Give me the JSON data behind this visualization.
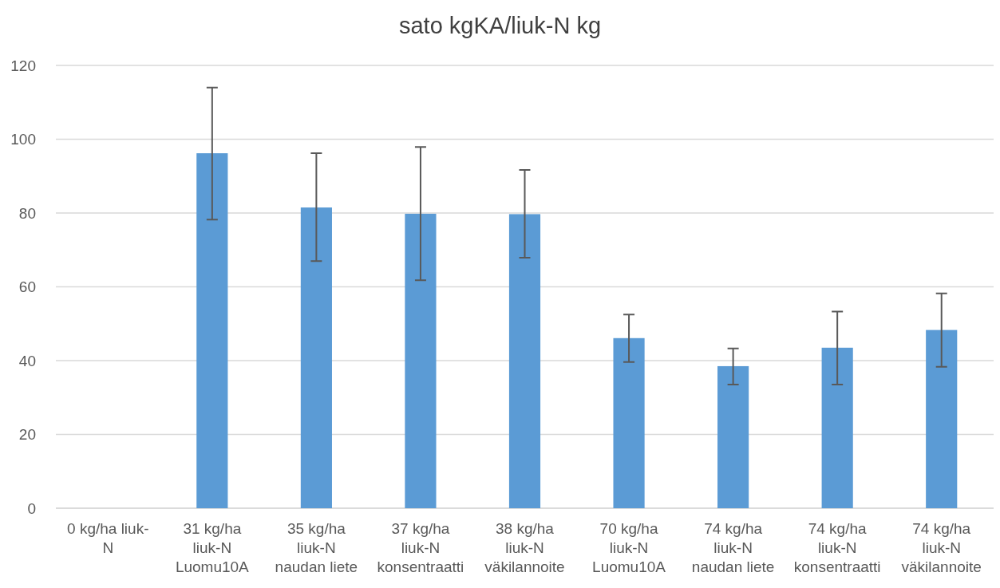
{
  "chart_data": {
    "type": "bar",
    "title": "sato kgKA/liuk-N kg",
    "categories": [
      "0 kg/ha liuk-\nN",
      "31 kg/ha\nliuk-N\nLuomu10A",
      "35 kg/ha\nliuk-N\nnaudan liete",
      "37 kg/ha\nliuk-N\nkonsentraatti",
      "38 kg/ha\nliuk-N\nväkilannoite",
      "70 kg/ha\nliuk-N\nLuomu10A",
      "74 kg/ha\nliuk-N\nnaudan liete",
      "74 kg/ha\nliuk-N\nkonsentraatti",
      "74 kg/ha\nliuk-N\nväkilannoite"
    ],
    "values": [
      null,
      96.2,
      81.5,
      79.8,
      79.7,
      46.1,
      38.5,
      43.5,
      48.3
    ],
    "errors": [
      null,
      [
        78.2,
        114
      ],
      [
        67,
        96.2
      ],
      [
        61.8,
        97.9
      ],
      [
        67.9,
        91.7
      ],
      [
        39.6,
        52.5
      ],
      [
        33.5,
        43.3
      ],
      [
        33.5,
        53.3
      ],
      [
        38.3,
        58.2
      ]
    ],
    "color": "#5b9bd5",
    "ylim": [
      0,
      120
    ],
    "yticks": [
      0,
      20,
      40,
      60,
      80,
      100,
      120
    ],
    "grid": "y"
  }
}
